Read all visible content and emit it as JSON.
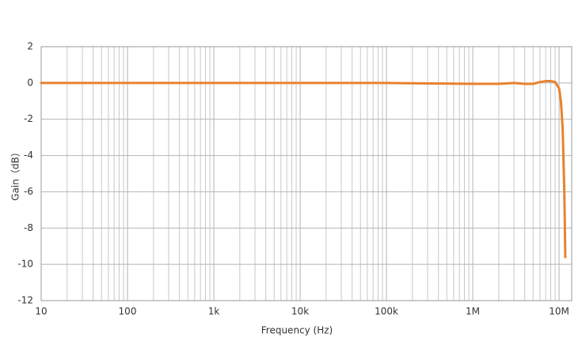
{
  "chart_data": {
    "type": "line",
    "x_label": "Frequency (Hz)",
    "y_label": "Gain（dB）",
    "x": [
      10,
      100,
      1000,
      10000,
      100000,
      1000000,
      2000000,
      3000000,
      4000000,
      5000000,
      6000000,
      7000000,
      8000000,
      9000000,
      10000000,
      10500000,
      11000000,
      11500000,
      11800000
    ],
    "series": [
      {
        "name": "Gain",
        "color": "#e8822e",
        "values": [
          0,
          0,
          0,
          0,
          0,
          -0.05,
          -0.05,
          0,
          -0.05,
          -0.05,
          0.05,
          0.1,
          0.1,
          0.05,
          -0.3,
          -1,
          -2.5,
          -6,
          -9.6
        ]
      }
    ],
    "xlog": true,
    "xlim": [
      10,
      14000000
    ],
    "xticks": [
      10,
      100,
      {
        "value": 1000,
        "label": "1k"
      },
      {
        "value": 10000,
        "label": "10k"
      },
      {
        "value": 100000,
        "label": "100k"
      },
      {
        "value": 1000000,
        "label": "1M"
      },
      {
        "value": 10000000,
        "label": "10M"
      }
    ],
    "ylim": [
      -12,
      2
    ],
    "yticks": [
      2,
      0,
      -2,
      -4,
      -6,
      -8,
      -10,
      -12
    ],
    "grid": true,
    "minor_grid": true
  }
}
